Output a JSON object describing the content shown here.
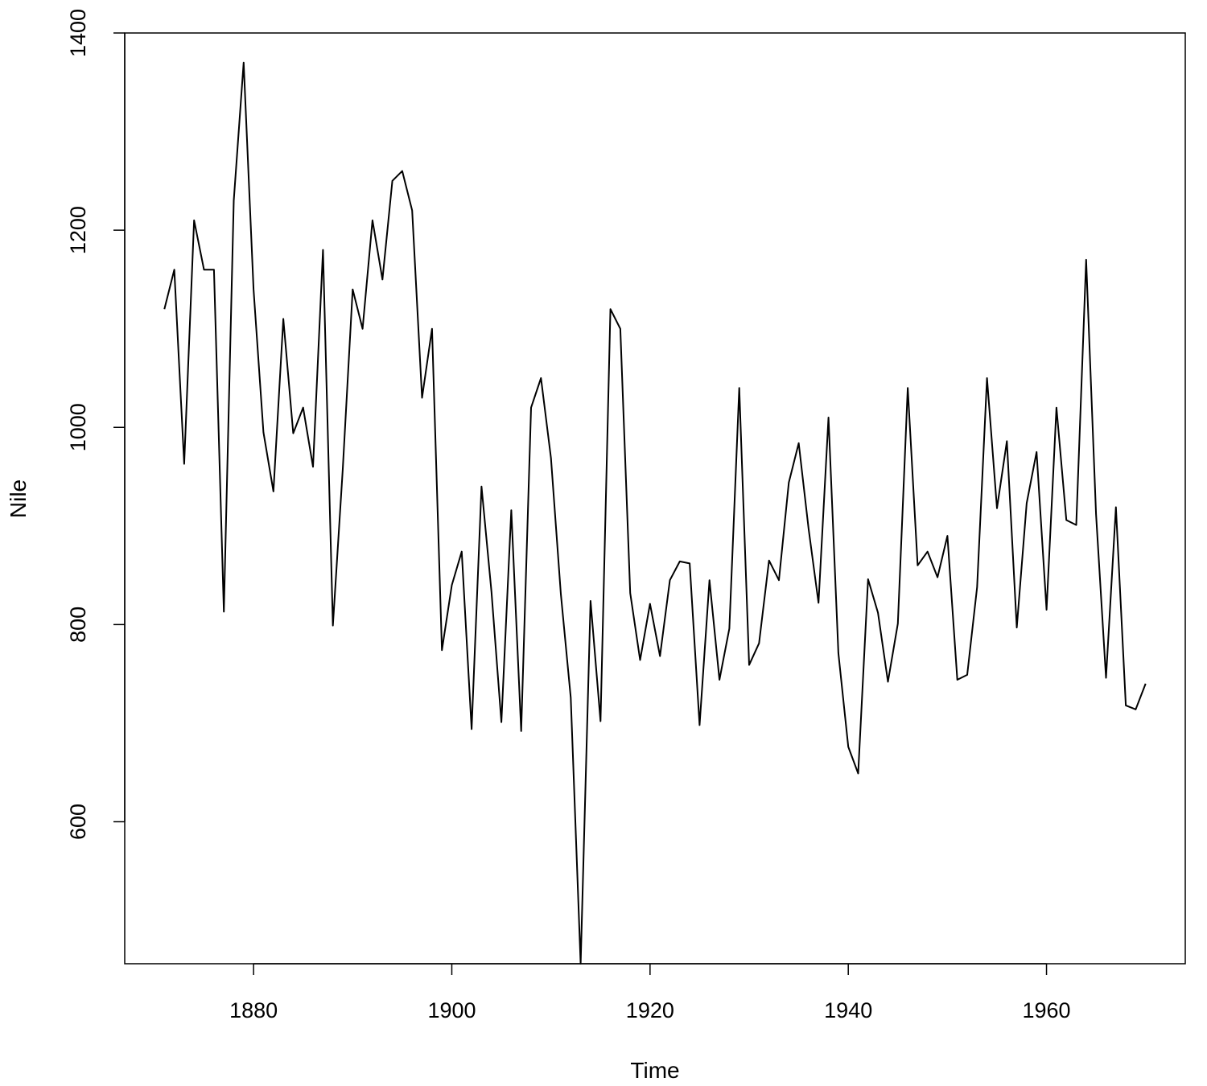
{
  "chart_data": {
    "type": "line",
    "title": "",
    "xlabel": "Time",
    "ylabel": "Nile",
    "xlim": [
      1867,
      1974
    ],
    "ylim": [
      456,
      1400
    ],
    "xticks": [
      1880,
      1900,
      1920,
      1940,
      1960
    ],
    "yticks": [
      600,
      800,
      1000,
      1200,
      1400
    ],
    "grid": false,
    "legend": "none",
    "line_color": "#000000",
    "series": [
      {
        "x": [
          1871,
          1872,
          1873,
          1874,
          1875,
          1876,
          1877,
          1878,
          1879,
          1880,
          1881,
          1882,
          1883,
          1884,
          1885,
          1886,
          1887,
          1888,
          1889,
          1890,
          1891,
          1892,
          1893,
          1894,
          1895,
          1896,
          1897,
          1898,
          1899,
          1900,
          1901,
          1902,
          1903,
          1904,
          1905,
          1906,
          1907,
          1908,
          1909,
          1910,
          1911,
          1912,
          1913,
          1914,
          1915,
          1916,
          1917,
          1918,
          1919,
          1920,
          1921,
          1922,
          1923,
          1924,
          1925,
          1926,
          1927,
          1928,
          1929,
          1930,
          1931,
          1932,
          1933,
          1934,
          1935,
          1936,
          1937,
          1938,
          1939,
          1940,
          1941,
          1942,
          1943,
          1944,
          1945,
          1946,
          1947,
          1948,
          1949,
          1950,
          1951,
          1952,
          1953,
          1954,
          1955,
          1956,
          1957,
          1958,
          1959,
          1960,
          1961,
          1962,
          1963,
          1964,
          1965,
          1966,
          1967,
          1968,
          1969,
          1970
        ],
        "values": [
          1120,
          1160,
          963,
          1210,
          1160,
          1160,
          813,
          1230,
          1370,
          1140,
          995,
          935,
          1110,
          994,
          1020,
          960,
          1180,
          799,
          958,
          1140,
          1100,
          1210,
          1150,
          1250,
          1260,
          1220,
          1030,
          1100,
          774,
          840,
          874,
          694,
          940,
          833,
          701,
          916,
          692,
          1020,
          1050,
          969,
          831,
          726,
          456,
          824,
          702,
          1120,
          1100,
          832,
          764,
          821,
          768,
          845,
          864,
          862,
          698,
          845,
          744,
          796,
          1040,
          759,
          781,
          865,
          845,
          944,
          984,
          897,
          822,
          1010,
          771,
          676,
          649,
          846,
          812,
          742,
          801,
          1040,
          860,
          874,
          848,
          890,
          744,
          749,
          838,
          1050,
          918,
          986,
          797,
          923,
          975,
          815,
          1020,
          906,
          901,
          1170,
          912,
          746,
          919,
          718,
          714,
          740
        ]
      }
    ]
  }
}
